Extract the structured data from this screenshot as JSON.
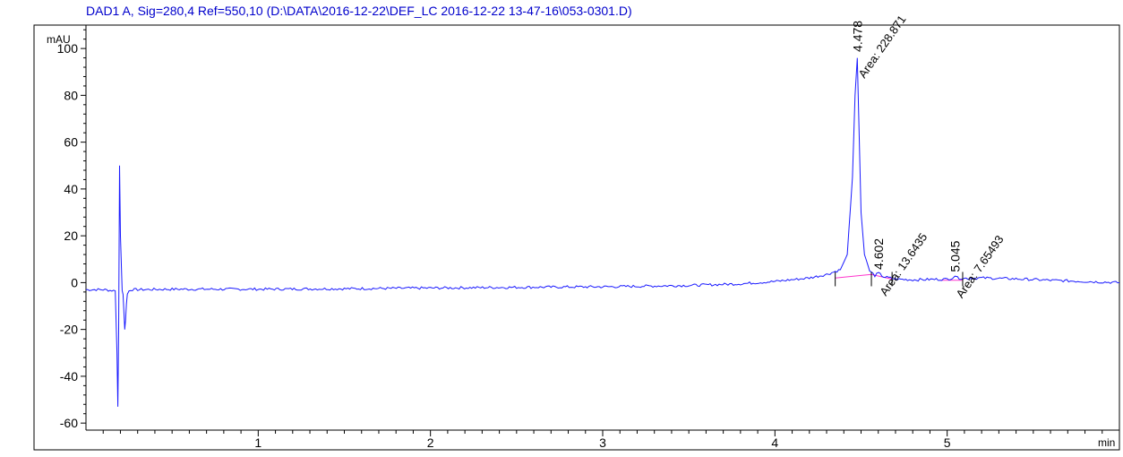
{
  "chart_data": {
    "type": "line",
    "title": "DAD1 A, Sig=280,4 Ref=550,10 (D:\\DATA\\2016-12-22\\DEF_LC 2016-12-22 13-47-16\\053-0301.D)",
    "ylabel": "mAU",
    "xlabel": "min",
    "xlim": [
      0,
      6
    ],
    "ylim": [
      -63,
      110
    ],
    "x_ticks": [
      1,
      2,
      3,
      4,
      5
    ],
    "y_ticks": [
      -60,
      -40,
      -20,
      0,
      20,
      40,
      60,
      80,
      100
    ],
    "grid": false,
    "series": [
      {
        "color": "#1a1aff",
        "x": [
          0.0,
          0.1,
          0.17,
          0.18,
          0.185,
          0.19,
          0.195,
          0.2,
          0.21,
          0.215,
          0.22,
          0.225,
          0.23,
          0.235,
          0.24,
          0.25,
          0.26,
          0.3,
          0.5,
          1.0,
          1.5,
          2.0,
          2.5,
          2.9,
          3.0,
          3.5,
          3.8,
          4.0,
          4.2,
          4.3,
          4.38,
          4.42,
          4.45,
          4.465,
          4.478,
          4.49,
          4.5,
          4.52,
          4.55,
          4.58,
          4.602,
          4.63,
          4.7,
          4.8,
          5.0,
          5.03,
          5.045,
          5.06,
          5.1,
          5.2,
          5.4,
          5.6,
          5.8,
          6.0
        ],
        "y": [
          -3.0,
          -3.0,
          -3.5,
          -30.0,
          -53.0,
          -20.0,
          50.0,
          20.0,
          -3.0,
          -5.0,
          -12.0,
          -20.0,
          -16.0,
          -9.0,
          -5.0,
          -3.5,
          -3.0,
          -3.0,
          -2.8,
          -2.8,
          -2.6,
          -2.3,
          -2.0,
          -1.8,
          -1.8,
          -1.2,
          -0.5,
          0.5,
          2.0,
          3.5,
          5.5,
          12.0,
          45.0,
          80.0,
          96.0,
          60.0,
          30.0,
          12.0,
          5.0,
          3.0,
          4.0,
          2.5,
          1.5,
          1.2,
          1.5,
          2.0,
          3.0,
          2.0,
          1.8,
          2.0,
          1.6,
          1.0,
          0.5,
          0.0
        ]
      }
    ],
    "baselines": [
      {
        "color": "#ff33cc",
        "x": [
          4.35,
          4.56,
          4.68
        ],
        "y": [
          2.0,
          3.5,
          1.5
        ]
      },
      {
        "color": "#ff33cc",
        "x": [
          4.96,
          5.09
        ],
        "y": [
          1.0,
          1.0
        ]
      }
    ],
    "peaks": [
      {
        "rt": 4.478,
        "label": "4.478",
        "area_label": "Area: 228.871",
        "apex": 97
      },
      {
        "rt": 4.602,
        "label": "4.602",
        "area_label": "Area: 13.6435",
        "apex": 4
      },
      {
        "rt": 5.045,
        "label": "5.045",
        "area_label": "Area: 7.65493",
        "apex": 3
      }
    ],
    "markers": [
      4.35,
      4.56,
      4.68,
      5.09
    ]
  }
}
